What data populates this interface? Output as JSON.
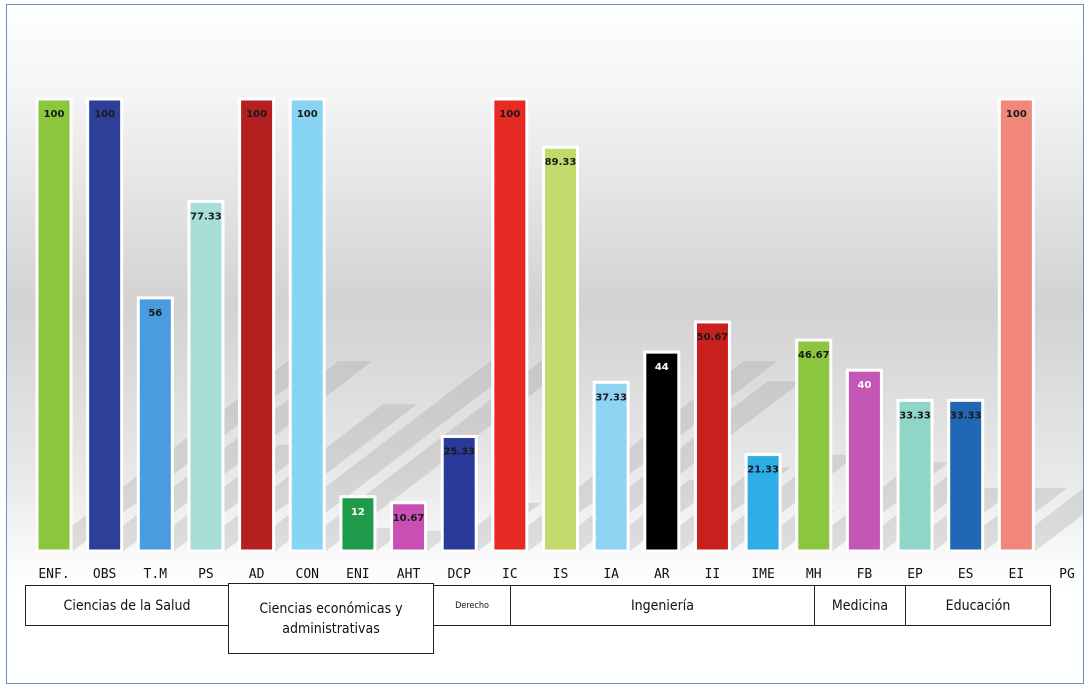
{
  "chart_data": {
    "type": "bar",
    "categories": [
      "ENF.",
      "OBS",
      "T.M",
      "PS",
      "AD",
      "CON",
      "ENI",
      "AHT",
      "DCP",
      "IC",
      "IS",
      "IA",
      "AR",
      "II",
      "IME",
      "MH",
      "FB",
      "EP",
      "ES",
      "EI",
      "PG"
    ],
    "values": [
      100,
      100,
      56,
      77.33,
      100,
      100,
      12,
      10.67,
      25.33,
      100,
      89.33,
      37.33,
      44,
      50.67,
      21.33,
      46.67,
      40,
      33.33,
      33.33,
      100,
      null
    ],
    "value_labels": [
      "100",
      "100",
      "56",
      "77.33",
      "100",
      "100",
      "12",
      "10.67",
      "25.33",
      "100",
      "89.33",
      "37.33",
      "44",
      "50.67",
      "21.33",
      "46.67",
      "40",
      "33.33",
      "33.33",
      "100",
      ""
    ],
    "colors": [
      "#8cc63f",
      "#2e3f99",
      "#4a9be0",
      "#a8ded8",
      "#b3201f",
      "#87d5f2",
      "#1f9a4b",
      "#c94fb5",
      "#2a3a9a",
      "#e82a24",
      "#c2d96b",
      "#8ed3f2",
      "#000000",
      "#c8201d",
      "#2eaee6",
      "#8cc63f",
      "#c456b5",
      "#8fd6c8",
      "#2167b5",
      "#f0877a",
      "#ffffff"
    ],
    "label_colors": [
      "#1a1a1a",
      "#1a1a1a",
      "#1a1a1a",
      "#1a1a1a",
      "#1a1a1a",
      "#1a1a1a",
      "#ffffff",
      "#1a1a1a",
      "#1a1a1a",
      "#1a1a1a",
      "#1a1a1a",
      "#1a1a1a",
      "#ffffff",
      "#1a1a1a",
      "#1a1a1a",
      "#1a1a1a",
      "#ffffff",
      "#1a1a1a",
      "#1a1a1a",
      "#1a1a1a",
      "#1a1a1a"
    ],
    "ylim": [
      0,
      100
    ],
    "grid": false,
    "title": "",
    "xlabel": "",
    "ylabel": "",
    "groups": [
      {
        "name": "Ciencias de la Salud"
      },
      {
        "name": "Ciencias económicas y administrativas"
      },
      {
        "name": "Derecho"
      },
      {
        "name": "Ingeniería"
      },
      {
        "name": "Medicina"
      },
      {
        "name": "Educación"
      }
    ]
  }
}
